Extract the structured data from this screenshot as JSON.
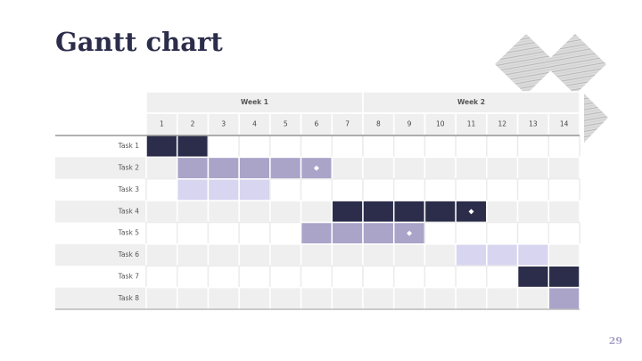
{
  "title": "Gantt chart",
  "page_number": "29",
  "weeks": [
    {
      "label": "Week 1",
      "first": 1,
      "last": 7
    },
    {
      "label": "Week 2",
      "first": 8,
      "last": 14
    }
  ],
  "days": [
    1,
    2,
    3,
    4,
    5,
    6,
    7,
    8,
    9,
    10,
    11,
    12,
    13,
    14
  ],
  "tasks": [
    {
      "label": "Task 1",
      "start": 1,
      "end": 2,
      "color": "#2b2d4a"
    },
    {
      "label": "Task 2",
      "start": 2,
      "end": 6,
      "color": "#aaa4c9",
      "milestone": 6
    },
    {
      "label": "Task 3",
      "start": 2,
      "end": 4,
      "color": "#d8d5f0"
    },
    {
      "label": "Task 4",
      "start": 7,
      "end": 11,
      "color": "#2b2d4a",
      "milestone": 11
    },
    {
      "label": "Task 5",
      "start": 6,
      "end": 9,
      "color": "#aaa4c9",
      "milestone": 9
    },
    {
      "label": "Task 6",
      "start": 11,
      "end": 13,
      "color": "#d8d5f0"
    },
    {
      "label": "Task 7",
      "start": 13,
      "end": 14,
      "color": "#2b2d4a"
    },
    {
      "label": "Task 8",
      "start": 14,
      "end": 14,
      "color": "#aaa4c9"
    }
  ]
}
